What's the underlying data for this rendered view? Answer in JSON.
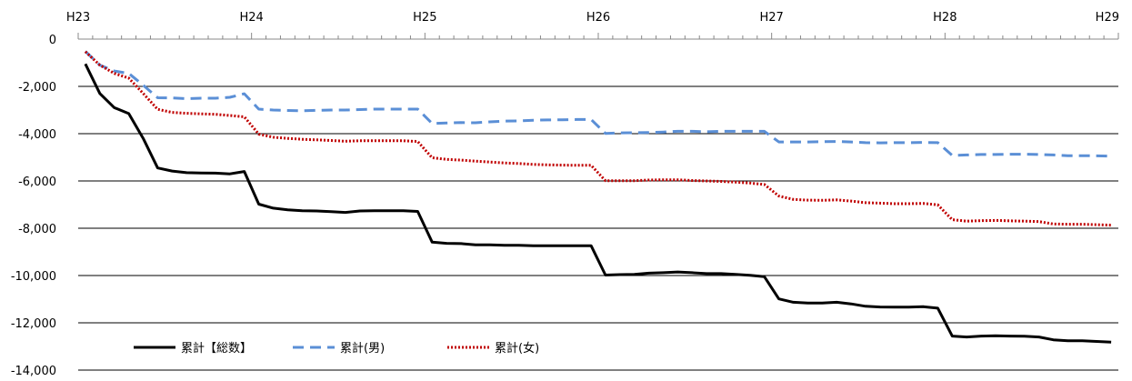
{
  "chart_data": {
    "type": "line",
    "x_top_labels": [
      "H23",
      "H24",
      "H25",
      "H26",
      "H27",
      "H28",
      "H29"
    ],
    "ylim": [
      -14000,
      0
    ],
    "ytick_values": [
      0,
      -2000,
      -4000,
      -6000,
      -8000,
      -10000,
      -12000,
      -14000
    ],
    "ytick_labels": [
      "0",
      "-2,000",
      "-4,000",
      "-6,000",
      "-8,000",
      "-10,000",
      "-12,000",
      "-14,000"
    ],
    "grid": true,
    "legend_position": "bottom-left",
    "series": [
      {
        "name": "累計【総数】",
        "color": "#000000",
        "style": "solid",
        "values": [
          -1050,
          -2300,
          -2900,
          -3150,
          -4200,
          -5450,
          -5580,
          -5650,
          -5660,
          -5670,
          -5700,
          -5600,
          -6980,
          -7150,
          -7220,
          -7260,
          -7270,
          -7300,
          -7330,
          -7270,
          -7260,
          -7260,
          -7260,
          -7290,
          -8590,
          -8640,
          -8650,
          -8700,
          -8700,
          -8720,
          -8720,
          -8740,
          -8740,
          -8740,
          -8740,
          -8740,
          -9980,
          -9960,
          -9950,
          -9900,
          -9880,
          -9850,
          -9880,
          -9920,
          -9920,
          -9950,
          -9990,
          -10050,
          -10990,
          -11130,
          -11160,
          -11160,
          -11130,
          -11200,
          -11300,
          -11330,
          -11340,
          -11340,
          -11320,
          -11380,
          -12560,
          -12600,
          -12560,
          -12550,
          -12560,
          -12570,
          -12600,
          -12720,
          -12760,
          -12760,
          -12790,
          -12820
        ]
      },
      {
        "name": "累計(男)",
        "color": "#5B8FD6",
        "style": "dashed",
        "values": [
          -520,
          -1100,
          -1350,
          -1450,
          -1950,
          -2480,
          -2490,
          -2520,
          -2500,
          -2500,
          -2460,
          -2310,
          -2960,
          -3000,
          -3020,
          -3030,
          -3010,
          -3000,
          -3000,
          -2980,
          -2960,
          -2960,
          -2960,
          -2960,
          -3570,
          -3550,
          -3530,
          -3540,
          -3500,
          -3470,
          -3460,
          -3430,
          -3420,
          -3410,
          -3400,
          -3400,
          -3990,
          -3970,
          -3960,
          -3950,
          -3930,
          -3900,
          -3900,
          -3920,
          -3900,
          -3900,
          -3900,
          -3900,
          -4350,
          -4350,
          -4350,
          -4340,
          -4330,
          -4350,
          -4380,
          -4390,
          -4380,
          -4380,
          -4370,
          -4380,
          -4920,
          -4900,
          -4880,
          -4880,
          -4870,
          -4870,
          -4880,
          -4900,
          -4930,
          -4930,
          -4940,
          -4950
        ]
      },
      {
        "name": "累計(女)",
        "color": "#C00000",
        "style": "dotted",
        "values": [
          -530,
          -1100,
          -1450,
          -1650,
          -2300,
          -2970,
          -3100,
          -3140,
          -3160,
          -3180,
          -3230,
          -3290,
          -4020,
          -4150,
          -4200,
          -4240,
          -4260,
          -4290,
          -4320,
          -4300,
          -4300,
          -4300,
          -4300,
          -4330,
          -5020,
          -5090,
          -5120,
          -5160,
          -5200,
          -5240,
          -5260,
          -5300,
          -5320,
          -5330,
          -5340,
          -5340,
          -5990,
          -5990,
          -5990,
          -5960,
          -5950,
          -5950,
          -5980,
          -6000,
          -6020,
          -6050,
          -6090,
          -6150,
          -6640,
          -6780,
          -6810,
          -6820,
          -6800,
          -6850,
          -6920,
          -6940,
          -6960,
          -6960,
          -6950,
          -7010,
          -7640,
          -7700,
          -7680,
          -7670,
          -7690,
          -7700,
          -7720,
          -7820,
          -7830,
          -7830,
          -7850,
          -7870
        ]
      }
    ]
  }
}
